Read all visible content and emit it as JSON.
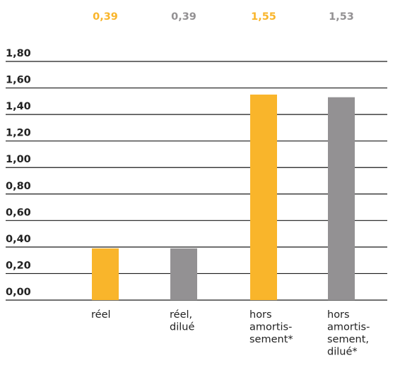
{
  "chart_data": {
    "type": "bar",
    "categories": [
      [
        "réel"
      ],
      [
        "réel,",
        "dilué"
      ],
      [
        "hors",
        "amortis-",
        "sement*"
      ],
      [
        "hors",
        "amortis-",
        "sement,",
        "dilué*"
      ]
    ],
    "values": [
      0.39,
      0.39,
      1.55,
      1.53
    ],
    "value_labels": [
      "0,39",
      "0,39",
      "1,55",
      "1,53"
    ],
    "bar_colors": [
      "#F9B52B",
      "#939193",
      "#F9B52B",
      "#939193"
    ],
    "y_ticks": [
      "0,00",
      "0,20",
      "0,40",
      "0,60",
      "0,80",
      "1,00",
      "1,20",
      "1,40",
      "1,60",
      "1,80"
    ],
    "ylim": [
      0,
      1.8
    ],
    "grid": true,
    "title": "",
    "xlabel": "",
    "ylabel": ""
  },
  "colors": {
    "orange": "#F9B52B",
    "gray": "#939193",
    "gridline": "#1a1a1a",
    "text": "#222222"
  }
}
